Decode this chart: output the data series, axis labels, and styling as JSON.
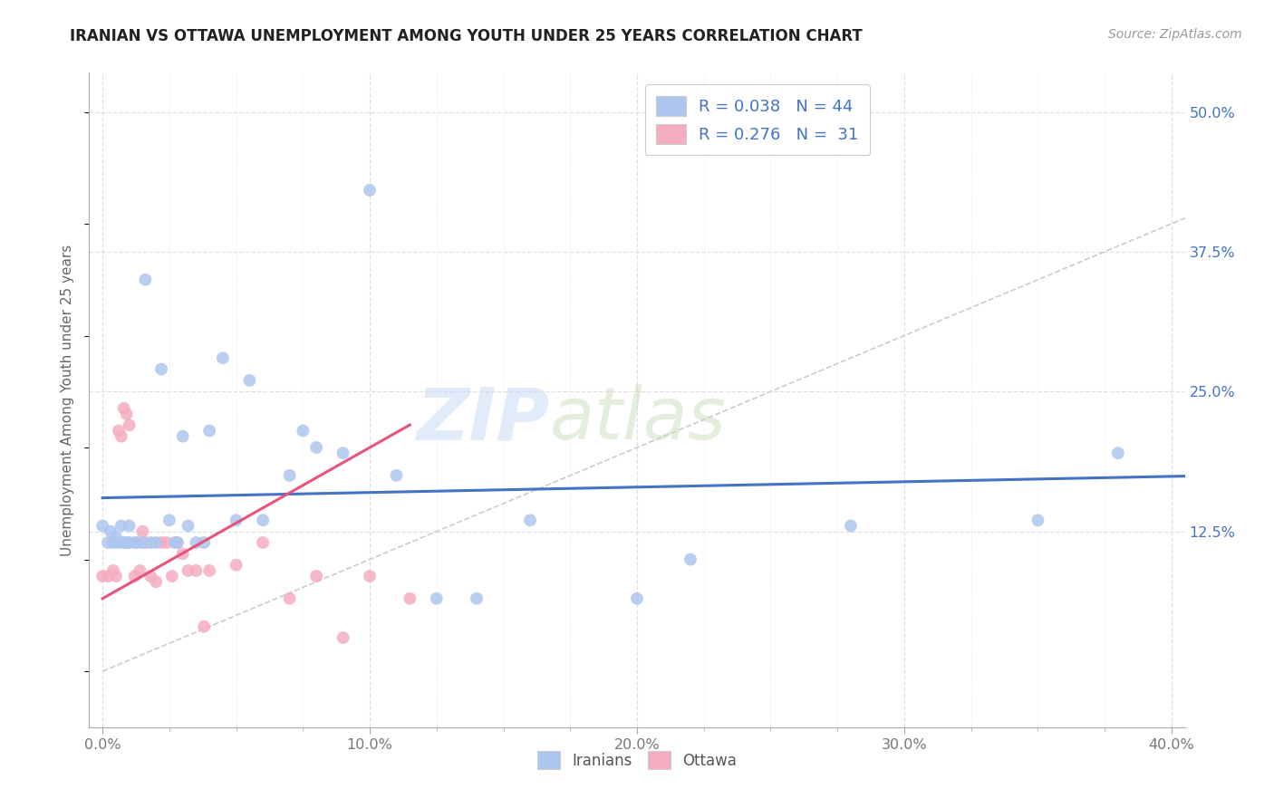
{
  "title": "IRANIAN VS OTTAWA UNEMPLOYMENT AMONG YOUTH UNDER 25 YEARS CORRELATION CHART",
  "source": "Source: ZipAtlas.com",
  "ylabel": "Unemployment Among Youth under 25 years",
  "xlabel_ticks": [
    "0.0%",
    "",
    "",
    "",
    "10.0%",
    "",
    "",
    "",
    "20.0%",
    "",
    "",
    "",
    "30.0%",
    "",
    "",
    "",
    "40.0%"
  ],
  "xlabel_vals": [
    0.0,
    0.025,
    0.05,
    0.075,
    0.1,
    0.125,
    0.15,
    0.175,
    0.2,
    0.225,
    0.25,
    0.275,
    0.3,
    0.325,
    0.35,
    0.375,
    0.4
  ],
  "xlabel_major_ticks": [
    0.0,
    0.1,
    0.2,
    0.3,
    0.4
  ],
  "xlabel_major_labels": [
    "0.0%",
    "10.0%",
    "20.0%",
    "30.0%",
    "40.0%"
  ],
  "ylabel_ticks": [
    0.125,
    0.25,
    0.375,
    0.5
  ],
  "ylabel_labels": [
    "12.5%",
    "25.0%",
    "37.5%",
    "50.0%"
  ],
  "xlim": [
    -0.005,
    0.405
  ],
  "ylim": [
    -0.05,
    0.535
  ],
  "iranian_scatter_x": [
    0.0,
    0.002,
    0.003,
    0.004,
    0.005,
    0.006,
    0.007,
    0.008,
    0.009,
    0.01,
    0.01,
    0.012,
    0.013,
    0.015,
    0.016,
    0.018,
    0.02,
    0.022,
    0.025,
    0.027,
    0.028,
    0.03,
    0.032,
    0.035,
    0.038,
    0.04,
    0.045,
    0.05,
    0.055,
    0.06,
    0.07,
    0.075,
    0.08,
    0.09,
    0.1,
    0.11,
    0.125,
    0.14,
    0.16,
    0.2,
    0.22,
    0.28,
    0.35,
    0.38
  ],
  "iranian_scatter_y": [
    0.13,
    0.115,
    0.125,
    0.115,
    0.12,
    0.115,
    0.13,
    0.115,
    0.115,
    0.115,
    0.13,
    0.115,
    0.115,
    0.115,
    0.35,
    0.115,
    0.115,
    0.27,
    0.135,
    0.115,
    0.115,
    0.21,
    0.13,
    0.115,
    0.115,
    0.215,
    0.28,
    0.135,
    0.26,
    0.135,
    0.175,
    0.215,
    0.2,
    0.195,
    0.43,
    0.175,
    0.065,
    0.065,
    0.135,
    0.065,
    0.1,
    0.13,
    0.135,
    0.195
  ],
  "ottawa_scatter_x": [
    0.0,
    0.002,
    0.004,
    0.005,
    0.006,
    0.007,
    0.008,
    0.009,
    0.01,
    0.012,
    0.014,
    0.015,
    0.016,
    0.018,
    0.02,
    0.022,
    0.024,
    0.026,
    0.028,
    0.03,
    0.032,
    0.035,
    0.038,
    0.04,
    0.05,
    0.06,
    0.07,
    0.08,
    0.09,
    0.1,
    0.115
  ],
  "ottawa_scatter_y": [
    0.085,
    0.085,
    0.09,
    0.085,
    0.215,
    0.21,
    0.235,
    0.23,
    0.22,
    0.085,
    0.09,
    0.125,
    0.115,
    0.085,
    0.08,
    0.115,
    0.115,
    0.085,
    0.115,
    0.105,
    0.09,
    0.09,
    0.04,
    0.09,
    0.095,
    0.115,
    0.065,
    0.085,
    0.03,
    0.085,
    0.065
  ],
  "iranian_color": "#adc6ef",
  "ottawa_color": "#f5adc0",
  "iranian_trendline_color": "#4472c4",
  "ottawa_trendline_color": "#e8537a",
  "diagonal_color": "#cccccc",
  "R_iranian": 0.038,
  "N_iranian": 44,
  "R_ottawa": 0.276,
  "N_ottawa": 31,
  "watermark_zip": "ZIP",
  "watermark_atlas": "atlas",
  "background_color": "#ffffff",
  "grid_color": "#e0e0e0",
  "marker_size": 100
}
